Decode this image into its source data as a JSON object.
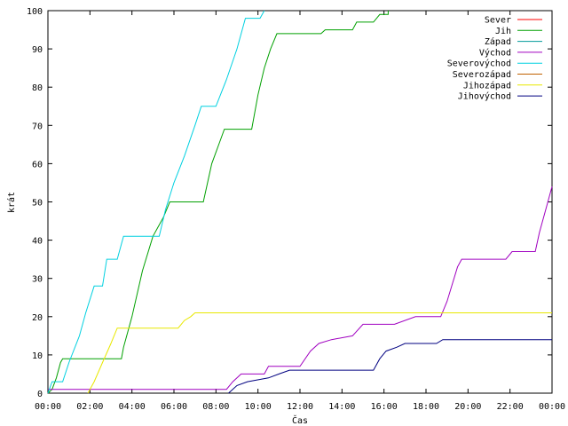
{
  "chart_data": {
    "type": "line",
    "title": "",
    "xlabel": "Čas",
    "ylabel": "krát",
    "xlim": [
      0,
      24
    ],
    "ylim": [
      0,
      100
    ],
    "x_ticks": [
      "00:00",
      "02:00",
      "04:00",
      "06:00",
      "08:00",
      "10:00",
      "12:00",
      "14:00",
      "16:00",
      "18:00",
      "20:00",
      "22:00",
      "00:00"
    ],
    "y_ticks": [
      "0",
      "10",
      "20",
      "30",
      "40",
      "50",
      "60",
      "70",
      "80",
      "90",
      "100"
    ],
    "legend_position": "top-right",
    "grid": false,
    "series": [
      {
        "name": "Sever",
        "color": "#ff0000",
        "points": []
      },
      {
        "name": "Jih",
        "color": "#00a000",
        "points": [
          [
            0,
            0
          ],
          [
            0.2,
            1
          ],
          [
            0.4,
            4
          ],
          [
            0.6,
            8
          ],
          [
            0.7,
            9
          ],
          [
            3.5,
            9
          ],
          [
            3.6,
            12
          ],
          [
            4.0,
            20
          ],
          [
            4.5,
            32
          ],
          [
            5.0,
            41
          ],
          [
            5.5,
            46
          ],
          [
            5.8,
            50
          ],
          [
            7.4,
            50
          ],
          [
            7.8,
            60
          ],
          [
            8.2,
            66
          ],
          [
            8.4,
            69
          ],
          [
            9.7,
            69
          ],
          [
            10.0,
            78
          ],
          [
            10.3,
            85
          ],
          [
            10.6,
            90
          ],
          [
            10.9,
            94
          ],
          [
            13.0,
            94
          ],
          [
            13.2,
            95
          ],
          [
            14.5,
            95
          ],
          [
            14.7,
            97
          ],
          [
            15.5,
            97
          ],
          [
            15.8,
            99
          ],
          [
            16.2,
            99
          ],
          [
            16.2,
            100
          ]
        ]
      },
      {
        "name": "Západ",
        "color": "#009999",
        "points": []
      },
      {
        "name": "Východ",
        "color": "#a000c0",
        "points": [
          [
            0,
            1
          ],
          [
            8.5,
            1
          ],
          [
            8.8,
            3
          ],
          [
            9.2,
            5
          ],
          [
            10.3,
            5
          ],
          [
            10.5,
            7
          ],
          [
            12.0,
            7
          ],
          [
            12.5,
            11
          ],
          [
            12.9,
            13
          ],
          [
            13.5,
            14
          ],
          [
            14.5,
            15
          ],
          [
            15.0,
            18
          ],
          [
            16.5,
            18
          ],
          [
            17.5,
            20
          ],
          [
            18.7,
            20
          ],
          [
            19.0,
            24
          ],
          [
            19.5,
            33
          ],
          [
            19.7,
            35
          ],
          [
            21.8,
            35
          ],
          [
            22.1,
            37
          ],
          [
            23.2,
            37
          ],
          [
            23.4,
            42
          ],
          [
            23.8,
            50
          ],
          [
            24.0,
            54
          ]
        ]
      },
      {
        "name": "Severovýchod",
        "color": "#00d0e0",
        "points": [
          [
            0,
            0
          ],
          [
            0.2,
            3
          ],
          [
            0.7,
            3
          ],
          [
            1.0,
            8
          ],
          [
            1.5,
            15
          ],
          [
            1.8,
            21
          ],
          [
            2.2,
            28
          ],
          [
            2.6,
            28
          ],
          [
            2.8,
            35
          ],
          [
            3.3,
            35
          ],
          [
            3.6,
            41
          ],
          [
            5.3,
            41
          ],
          [
            5.6,
            48
          ],
          [
            6.0,
            55
          ],
          [
            6.5,
            62
          ],
          [
            7.0,
            70
          ],
          [
            7.3,
            75
          ],
          [
            8.0,
            75
          ],
          [
            8.5,
            82
          ],
          [
            9.0,
            90
          ],
          [
            9.4,
            98
          ],
          [
            10.1,
            98
          ],
          [
            10.3,
            100
          ]
        ]
      },
      {
        "name": "Severozápad",
        "color": "#c06000",
        "points": []
      },
      {
        "name": "Jihozápad",
        "color": "#e8e800",
        "points": [
          [
            1.9,
            0
          ],
          [
            2.2,
            3
          ],
          [
            2.6,
            8
          ],
          [
            3.0,
            13
          ],
          [
            3.3,
            17
          ],
          [
            6.2,
            17
          ],
          [
            6.5,
            19
          ],
          [
            6.8,
            20
          ],
          [
            7.0,
            21
          ],
          [
            24.0,
            21
          ]
        ]
      },
      {
        "name": "Jihovýchod",
        "color": "#000080",
        "points": [
          [
            8.6,
            0
          ],
          [
            9.0,
            2
          ],
          [
            9.5,
            3
          ],
          [
            10.5,
            4
          ],
          [
            11.0,
            5
          ],
          [
            11.5,
            6
          ],
          [
            15.5,
            6
          ],
          [
            15.8,
            9
          ],
          [
            16.1,
            11
          ],
          [
            16.6,
            12
          ],
          [
            17.0,
            13
          ],
          [
            18.5,
            13
          ],
          [
            18.8,
            14
          ],
          [
            24.0,
            14
          ]
        ]
      }
    ]
  }
}
